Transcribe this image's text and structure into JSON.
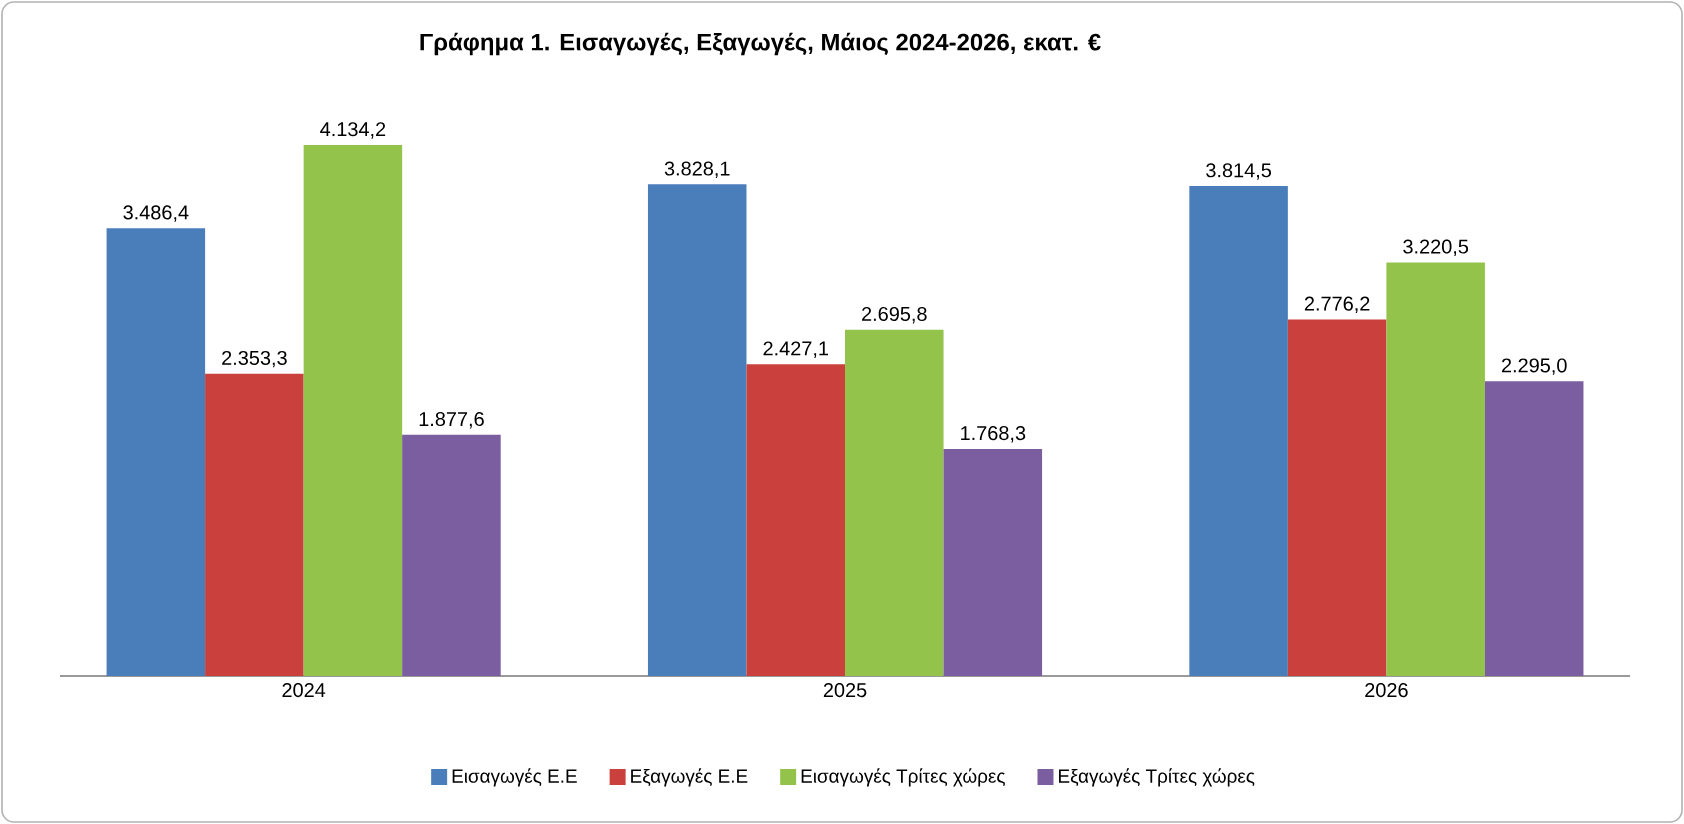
{
  "chart_data": {
    "type": "bar",
    "title": "Γράφημα 1. Εισαγωγές, Εξαγωγές, Μάιος 2024-2026, εκατ. €",
    "categories": [
      "2024",
      "2025",
      "2026"
    ],
    "series": [
      {
        "name": "Εισαγωγές Ε.Ε",
        "color": "#4a7ebb",
        "values": [
          3486.4,
          3828.1,
          3814.5
        ],
        "value_labels": [
          "3.486,4",
          "3.828,1",
          "3.814,5"
        ]
      },
      {
        "name": "Εξαγωγές  Ε.Ε",
        "color": "#c9403c",
        "values": [
          2353.3,
          2427.1,
          2776.2
        ],
        "value_labels": [
          "2.353,3",
          "2.427,1",
          "2.776,2"
        ]
      },
      {
        "name": "Εισαγωγές Τρίτες χώρες",
        "color": "#94c34c",
        "values": [
          4134.2,
          2695.8,
          3220.5
        ],
        "value_labels": [
          "4.134,2",
          "2.695,8",
          "3.220,5"
        ]
      },
      {
        "name": "Εξαγωγές Τρίτες χώρες",
        "color": "#7b5ea0",
        "values": [
          1877.6,
          1768.3,
          2295.0
        ],
        "value_labels": [
          "1.877,6",
          "1.768,3",
          "2.295,0"
        ]
      }
    ],
    "legend": "bottom"
  }
}
